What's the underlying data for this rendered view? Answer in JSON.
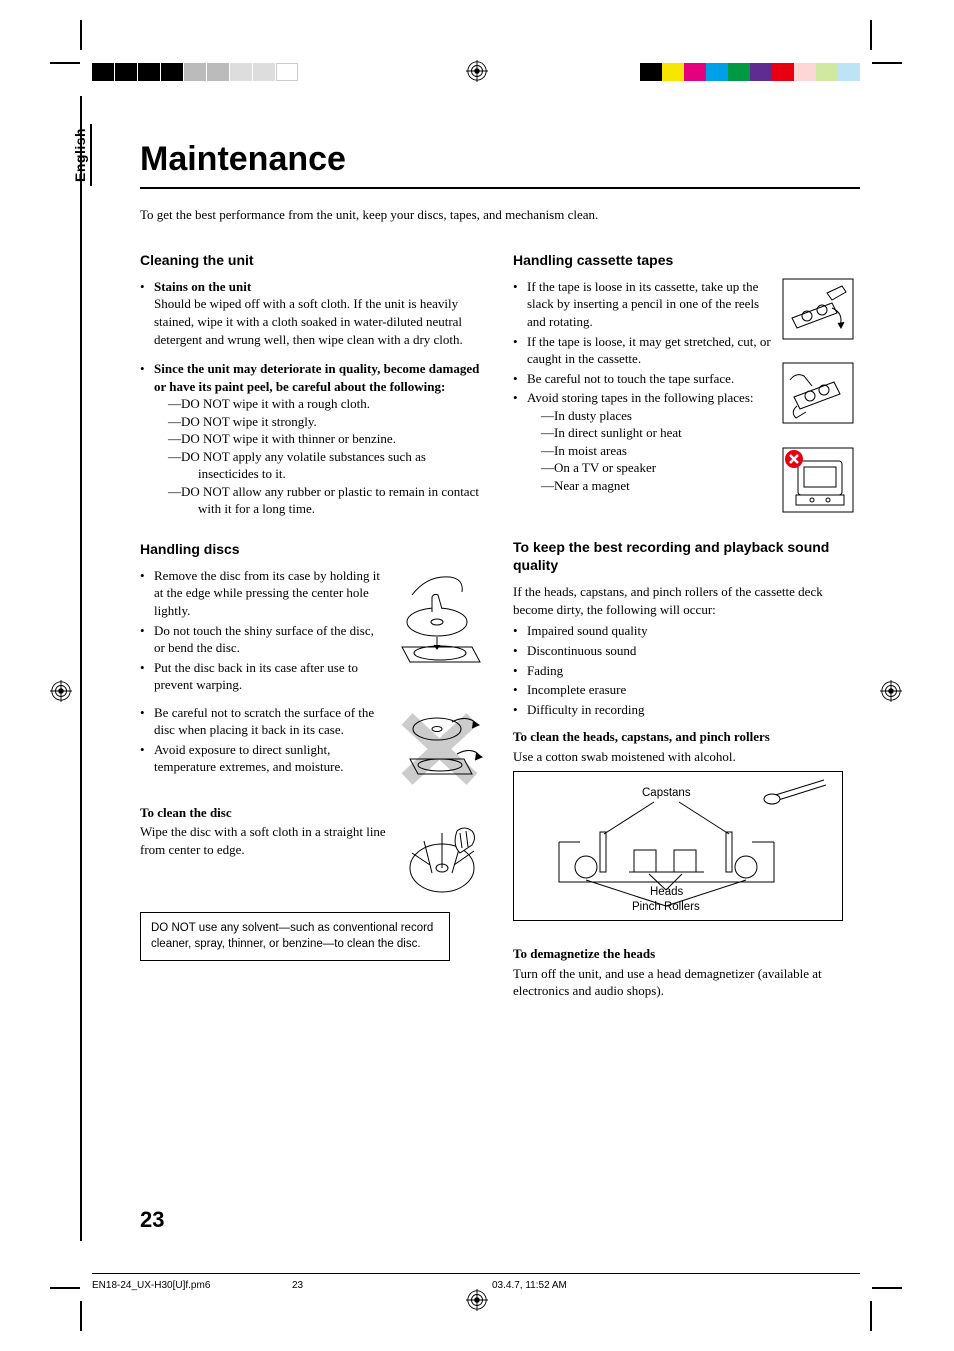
{
  "language": "English",
  "title": "Maintenance",
  "intro": "To get the best performance from the unit, keep your discs, tapes, and mechanism clean.",
  "page_number": "23",
  "footer": {
    "file": "EN18-24_UX-H30[U]f.pm6",
    "page": "23",
    "timestamp": "03.4.7, 11:52 AM"
  },
  "color_bar_colors": [
    "#000000",
    "#f7e600",
    "#e4007f",
    "#00a0e9",
    "#009944",
    "#5f2d8f",
    "#e60012",
    "#fdd6d6",
    "#d1e8a1",
    "#bde3f7"
  ],
  "left": {
    "cleaning_head": "Cleaning the unit",
    "stains_head": "Stains on the unit",
    "stains_body": "Should be wiped off with a soft cloth. If the unit is heavily stained, wipe it with a cloth soaked in water-diluted neutral detergent and wrung well, then wipe clean with a dry cloth.",
    "deteriorate_head": "Since the unit may deteriorate in quality, become damaged or have its paint peel, be careful about the following:",
    "donot": [
      "—DO NOT wipe it with a rough cloth.",
      "—DO NOT wipe it strongly.",
      "—DO NOT wipe it with thinner or benzine.",
      "—DO NOT apply any volatile substances such as insecticides to it.",
      "—DO NOT allow any rubber or plastic to remain in contact with it for a long time."
    ],
    "discs_head": "Handling discs",
    "discs_items": [
      "Remove the disc from its case by holding it at the edge while pressing the center hole lightly.",
      "Do not touch the shiny surface of the disc, or bend the disc.",
      "Put the disc back in its case after use to prevent warping.",
      "Be careful not to scratch the surface of the disc when placing it back in its case.",
      "Avoid exposure to direct sunlight, temperature extremes, and moisture."
    ],
    "clean_disc_head": "To clean the disc",
    "clean_disc_body": "Wipe the disc with a soft cloth in a straight line from center to edge.",
    "note": "DO NOT use any solvent—such as conventional record cleaner, spray, thinner, or benzine—to clean the disc."
  },
  "right": {
    "cassette_head": "Handling cassette tapes",
    "cassette_items": [
      "If the tape is loose in its cassette, take up the slack by inserting a pencil in one of the reels and rotating.",
      "If the tape is loose, it may get stretched, cut, or caught in the cassette.",
      "Be careful not to touch the tape surface.",
      "Avoid storing tapes in the following places:"
    ],
    "cassette_places": [
      "—In dusty places",
      "—In direct sunlight or heat",
      "—In moist areas",
      "—On a TV or speaker",
      "—Near a magnet"
    ],
    "sound_head": "To keep the best recording and playback sound quality",
    "sound_intro": "If the heads, capstans, and pinch rollers of the cassette deck become dirty, the following will occur:",
    "sound_items": [
      "Impaired sound quality",
      "Discontinuous sound",
      "Fading",
      "Incomplete erasure",
      "Difficulty in recording"
    ],
    "clean_heads_head": "To clean the heads, capstans, and pinch rollers",
    "clean_heads_body": "Use a cotton swab moistened with alcohol.",
    "diagram": {
      "capstans": "Capstans",
      "heads": "Heads",
      "rollers": "Pinch Rollers"
    },
    "demag_head": "To demagnetize the heads",
    "demag_body": "Turn off the unit, and use a head demagnetizer (available at electronics and audio shops)."
  }
}
